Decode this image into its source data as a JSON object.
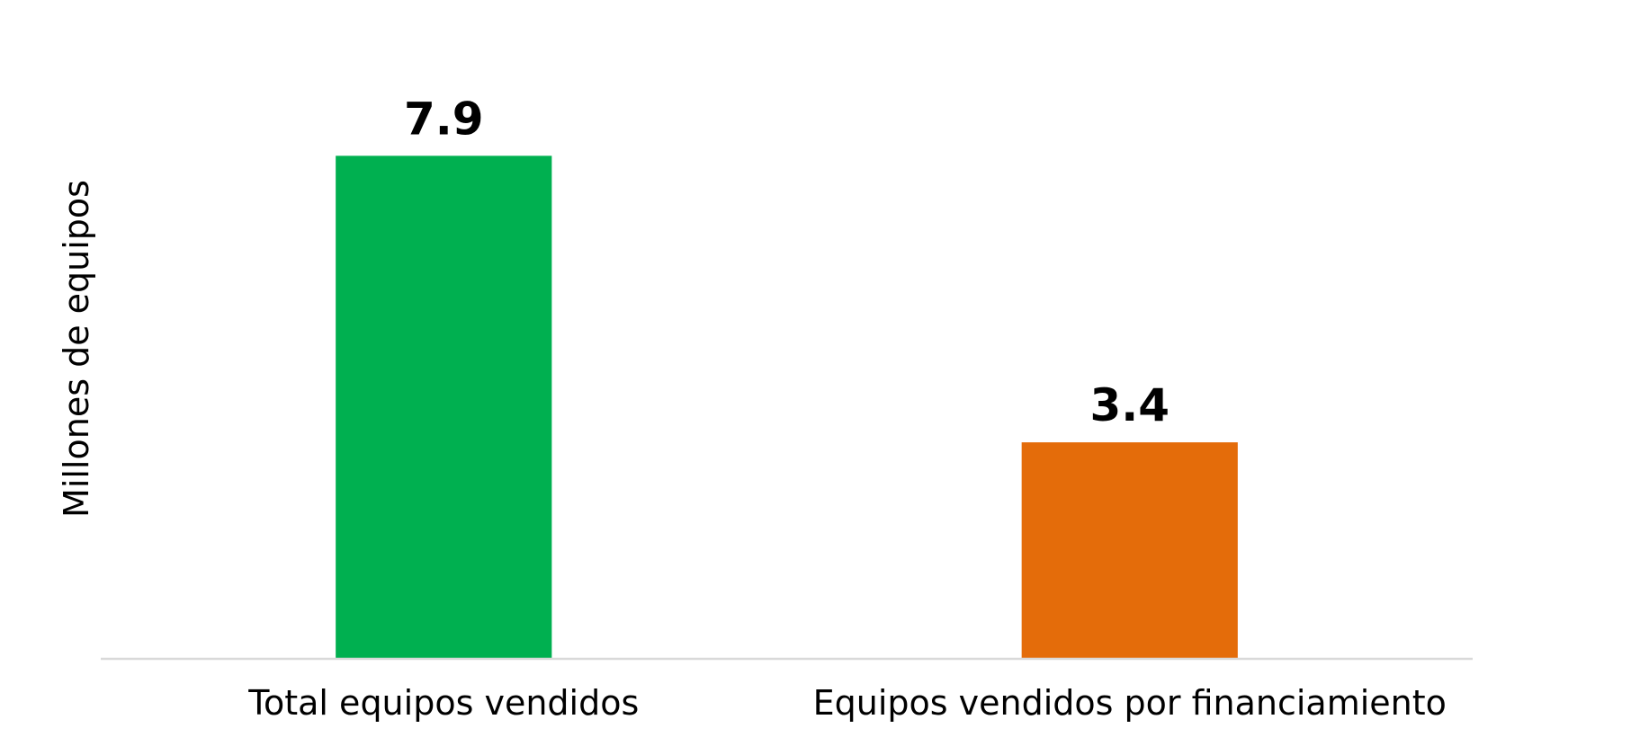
{
  "chart_data": {
    "type": "bar",
    "categories": [
      "Total equipos vendidos",
      "Equipos vendidos por financiamiento"
    ],
    "values": [
      7.9,
      3.4
    ],
    "data_labels": [
      "7.9",
      "3.4"
    ],
    "colors": [
      "#00b050",
      "#e46c0a"
    ],
    "axis_color": "#d9d9d9",
    "title": "",
    "xlabel": "",
    "ylabel": "Millones de equipos",
    "ylim": [
      0,
      9.5
    ],
    "grid": false,
    "legend": "none"
  }
}
